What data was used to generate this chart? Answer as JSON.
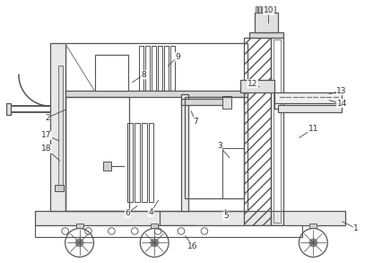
{
  "line_color": "#555555",
  "label_color": "#333333",
  "lw": 0.9,
  "fig_w": 4.26,
  "fig_h": 2.93,
  "bg": "white",
  "label_fs": 6.5,
  "labels": [
    [
      1,
      3.98,
      0.38,
      3.8,
      0.47
    ],
    [
      2,
      0.52,
      1.62,
      0.75,
      1.72
    ],
    [
      3,
      2.45,
      1.3,
      2.58,
      1.15
    ],
    [
      4,
      1.68,
      0.56,
      1.78,
      0.72
    ],
    [
      5,
      2.52,
      0.52,
      2.52,
      0.62
    ],
    [
      6,
      1.42,
      0.55,
      1.55,
      0.65
    ],
    [
      7,
      2.18,
      1.58,
      2.12,
      1.72
    ],
    [
      8,
      1.6,
      2.1,
      1.45,
      2.0
    ],
    [
      9,
      1.98,
      2.3,
      1.85,
      2.18
    ],
    [
      10,
      3.0,
      2.82,
      3.0,
      2.65
    ],
    [
      11,
      3.5,
      1.5,
      3.32,
      1.38
    ],
    [
      12,
      2.82,
      2.0,
      2.92,
      1.95
    ],
    [
      13,
      3.82,
      1.92,
      3.65,
      1.88
    ],
    [
      14,
      3.82,
      1.78,
      3.65,
      1.82
    ],
    [
      16,
      2.15,
      0.18,
      2.05,
      0.32
    ],
    [
      17,
      0.51,
      1.42,
      0.68,
      1.35
    ],
    [
      18,
      0.51,
      1.27,
      0.68,
      1.12
    ]
  ]
}
